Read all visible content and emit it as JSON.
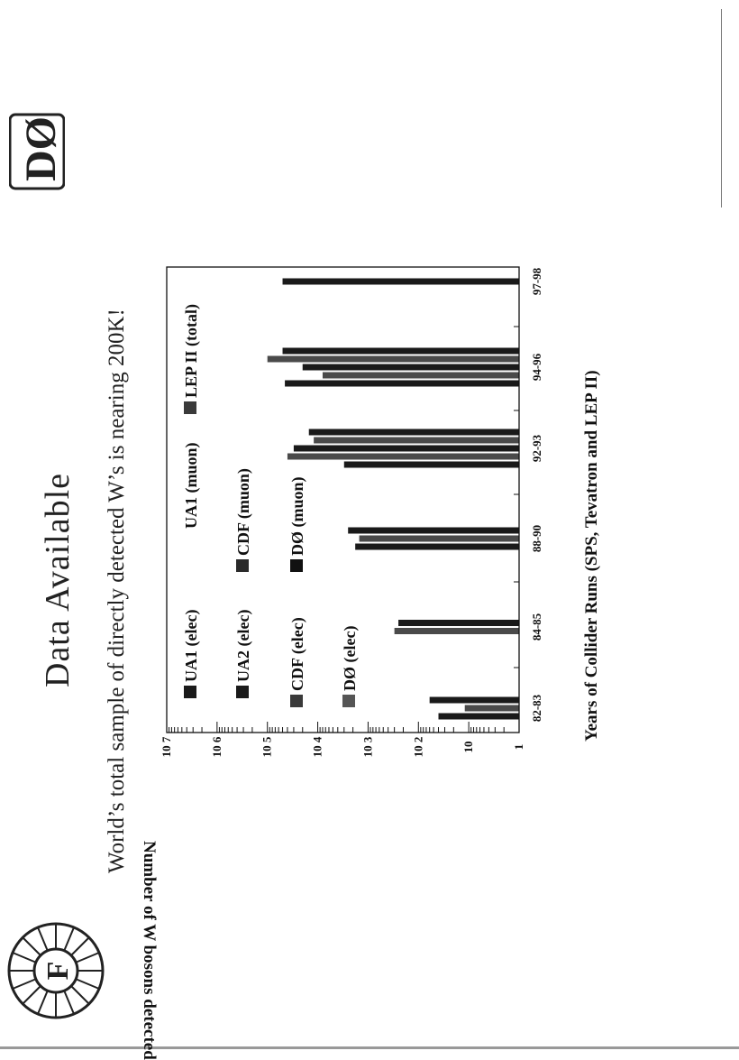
{
  "page": {
    "title": "Data Available",
    "subtitle": "World’s total sample of directly detected W’s is nearing 200K!"
  },
  "logos": {
    "top_right": "DØ",
    "bottom_left": "F"
  },
  "chart_data": {
    "type": "bar",
    "orientation": "horizontal",
    "value_scale": "log",
    "categories": [
      "82-83",
      "84-85",
      "88-90",
      "92-93",
      "94-96",
      "97-98"
    ],
    "xlabel": "Years of Collider Runs (SPS, Tevatron and LEP II)",
    "ylabel": "Number of W bosons detected",
    "ylim": [
      1,
      10000000
    ],
    "y_ticks": [
      "1",
      "10",
      "10 2",
      "10 3",
      "10 4",
      "10 5",
      "10 6",
      "10 7"
    ],
    "legend_placement": "inside-top",
    "series": [
      {
        "name": "UA1 (elec)",
        "color": "#1a1a1a",
        "values": [
          60,
          300,
          null,
          null,
          null,
          null
        ]
      },
      {
        "name": "UA1 (muon)",
        "color": "#1a1a1a",
        "values": [
          12,
          null,
          null,
          null,
          null,
          null
        ]
      },
      {
        "name": "UA2 (elec)",
        "color": "#1a1a1a",
        "values": [
          40,
          250,
          null,
          null,
          null,
          null
        ]
      },
      {
        "name": "CDF (elec)",
        "color": "#3a3a3a",
        "values": [
          null,
          null,
          2500,
          30000,
          50000,
          null
        ]
      },
      {
        "name": "CDF (muon)",
        "color": "#2a2a2a",
        "values": [
          null,
          null,
          1500,
          40000,
          20000,
          null
        ]
      },
      {
        "name": "DØ (elec)",
        "color": "#555555",
        "values": [
          null,
          null,
          null,
          12000,
          100000,
          null
        ]
      },
      {
        "name": "DØ (muon)",
        "color": "#111111",
        "values": [
          null,
          null,
          null,
          3000,
          8000,
          null
        ]
      },
      {
        "name": "LEP II (total)",
        "color": "#3a3a3a",
        "values": [
          null,
          null,
          1800,
          15000,
          45000,
          50000
        ]
      }
    ],
    "bars": [
      {
        "cat": 0,
        "value": 60
      },
      {
        "cat": 0,
        "value": 12
      },
      {
        "cat": 0,
        "value": 40
      },
      {
        "cat": 1,
        "value": 250
      },
      {
        "cat": 1,
        "value": 300
      },
      {
        "cat": 2,
        "value": 2500
      },
      {
        "cat": 2,
        "value": 1500
      },
      {
        "cat": 2,
        "value": 1800
      },
      {
        "cat": 3,
        "value": 15000
      },
      {
        "cat": 3,
        "value": 12000
      },
      {
        "cat": 3,
        "value": 30000
      },
      {
        "cat": 3,
        "value": 40000
      },
      {
        "cat": 3,
        "value": 3000
      },
      {
        "cat": 4,
        "value": 50000
      },
      {
        "cat": 4,
        "value": 100000
      },
      {
        "cat": 4,
        "value": 20000
      },
      {
        "cat": 4,
        "value": 8000
      },
      {
        "cat": 4,
        "value": 45000
      },
      {
        "cat": 5,
        "value": 50000
      }
    ]
  }
}
